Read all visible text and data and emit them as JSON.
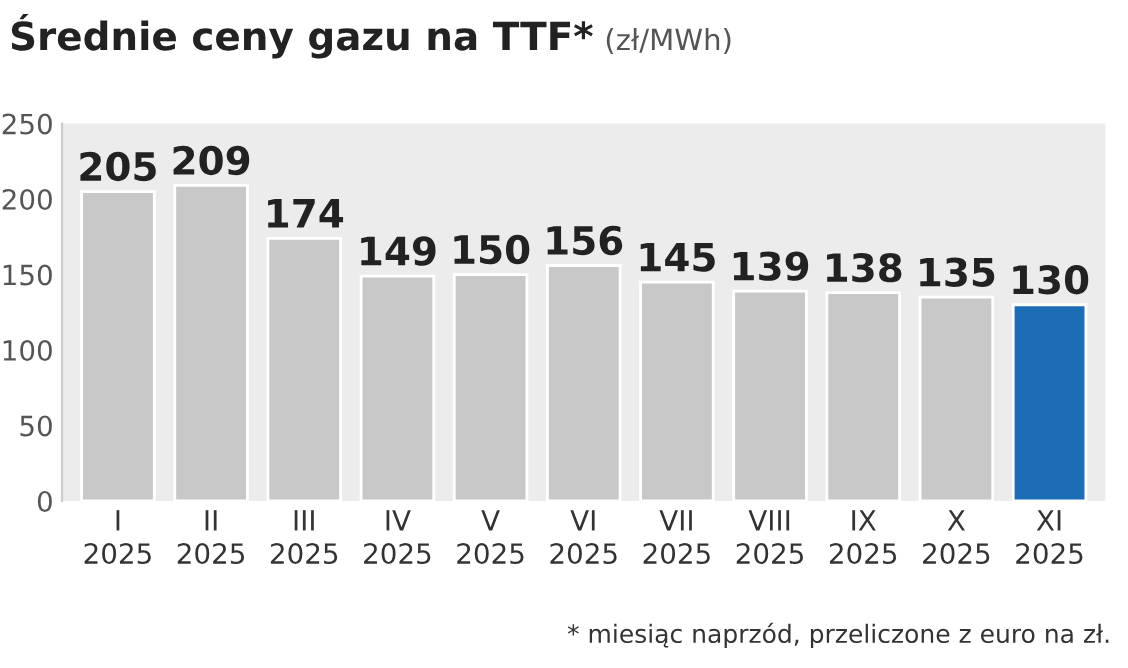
{
  "chart_data": {
    "type": "bar",
    "title": "Średnie ceny gazu na TTF*",
    "subtitle": "(zł/MWh)",
    "categories": [
      "I\n2025",
      "II\n2025",
      "III\n2025",
      "IV\n2025",
      "V\n2025",
      "VI\n2025",
      "VII\n2025",
      "VIII\n2025",
      "IX\n2025",
      "X\n2025",
      "XI\n2025"
    ],
    "values": [
      205,
      209,
      174,
      149,
      150,
      156,
      145,
      139,
      138,
      135,
      130
    ],
    "colors": [
      "#c8c8c8",
      "#c8c8c8",
      "#c8c8c8",
      "#c8c8c8",
      "#c8c8c8",
      "#c8c8c8",
      "#c8c8c8",
      "#c8c8c8",
      "#c8c8c8",
      "#c8c8c8",
      "#1c6db4"
    ],
    "ylim": [
      0,
      250
    ],
    "yticks": [
      0,
      50,
      100,
      150,
      200,
      250
    ],
    "data_labels": true,
    "grid": false,
    "legend": false,
    "annotations": [
      "* miesiąc naprzód, przeliczone z euro na zł."
    ]
  }
}
